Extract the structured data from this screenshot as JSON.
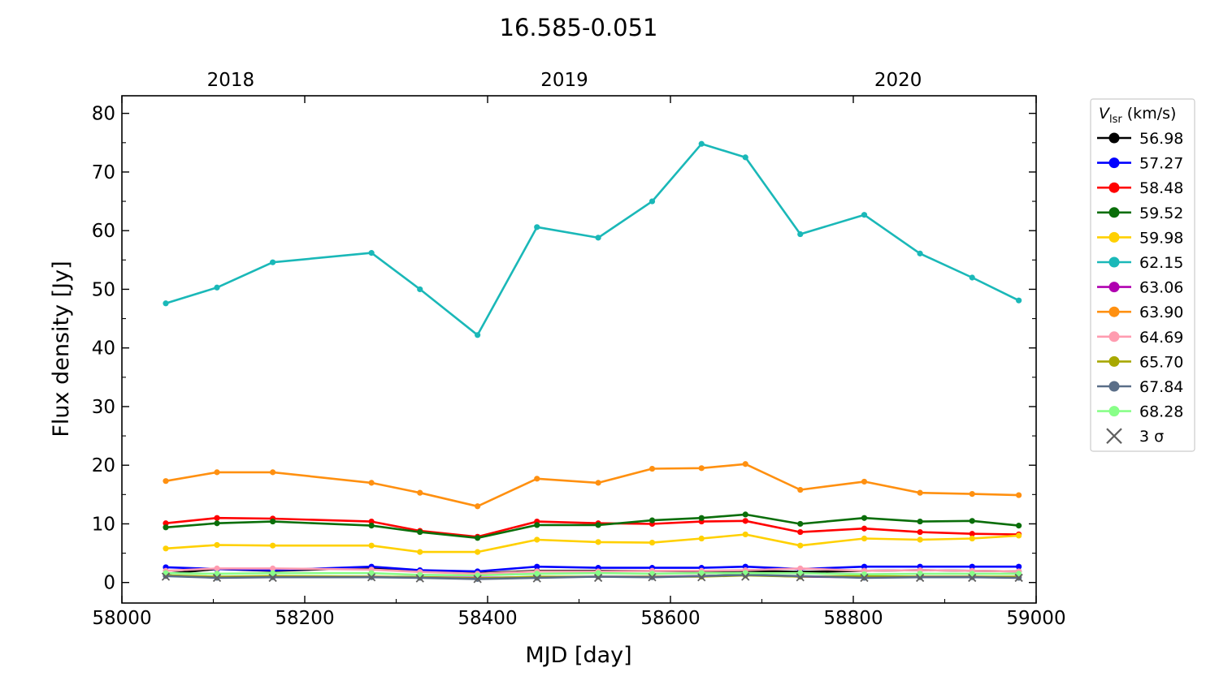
{
  "chart_data": {
    "type": "line",
    "title": "16.585-0.051",
    "xlabel": "MJD [day]",
    "ylabel": "Flux density [Jy]",
    "xlim": [
      58000,
      59000
    ],
    "ylim": [
      -3.5,
      83
    ],
    "grid": false,
    "x_ticks": [
      58000,
      58200,
      58400,
      58600,
      58800,
      59000
    ],
    "x_tick_labels": [
      "58000",
      "58200",
      "58400",
      "58600",
      "58800",
      "59000"
    ],
    "y_ticks": [
      0,
      10,
      20,
      30,
      40,
      50,
      60,
      70,
      80
    ],
    "y_tick_labels": [
      "0",
      "10",
      "20",
      "30",
      "40",
      "50",
      "60",
      "70",
      "80"
    ],
    "top_axis": {
      "labels": [
        "2018",
        "2019",
        "2020"
      ],
      "ticks_mjd": [
        58119,
        58484,
        58849
      ]
    },
    "legend": {
      "title_var": "V",
      "title_sub": "lsr",
      "title_unit": " (km/s)",
      "position": "outside-right"
    },
    "x": [
      58048,
      58104,
      58165,
      58273,
      58326,
      58389,
      58454,
      58521,
      58580,
      58634,
      58682,
      58742,
      58812,
      58873,
      58930,
      58981
    ],
    "series": [
      {
        "name": "56.98",
        "color": "#000000",
        "values": [
          1.5,
          2.3,
          2.0,
          2.5,
          2.0,
          1.6,
          2.0,
          2.0,
          2.0,
          1.9,
          2.0,
          1.8,
          2.0,
          2.1,
          2.0,
          1.9
        ]
      },
      {
        "name": "57.27",
        "color": "#0000ff",
        "values": [
          2.6,
          2.3,
          2.1,
          2.7,
          2.1,
          1.9,
          2.7,
          2.5,
          2.5,
          2.5,
          2.7,
          2.3,
          2.7,
          2.7,
          2.7,
          2.7
        ]
      },
      {
        "name": "58.48",
        "color": "#ff0000",
        "values": [
          10.1,
          11.0,
          10.9,
          10.4,
          8.8,
          7.8,
          10.4,
          10.1,
          10.0,
          10.4,
          10.5,
          8.6,
          9.2,
          8.6,
          8.3,
          8.2
        ]
      },
      {
        "name": "59.52",
        "color": "#0a6e0a",
        "values": [
          9.4,
          10.1,
          10.4,
          9.7,
          8.6,
          7.6,
          9.8,
          9.8,
          10.6,
          11.0,
          11.6,
          10.0,
          11.0,
          10.4,
          10.5,
          9.7
        ]
      },
      {
        "name": "59.98",
        "color": "#ffd000",
        "values": [
          5.8,
          6.4,
          6.3,
          6.3,
          5.2,
          5.2,
          7.3,
          6.9,
          6.8,
          7.5,
          8.2,
          6.3,
          7.5,
          7.3,
          7.5,
          8.0
        ]
      },
      {
        "name": "62.15",
        "color": "#1ab8b8",
        "values": [
          47.6,
          50.3,
          54.6,
          56.2,
          50.0,
          42.2,
          60.6,
          58.8,
          65.0,
          74.8,
          72.5,
          59.4,
          62.7,
          56.1,
          52.0,
          48.1
        ]
      },
      {
        "name": "63.06",
        "color": "#b000b0",
        "values": [
          1.2,
          0.9,
          1.0,
          1.0,
          0.9,
          0.8,
          0.9,
          1.0,
          1.0,
          1.1,
          1.3,
          1.0,
          0.9,
          1.0,
          1.0,
          0.9
        ]
      },
      {
        "name": "63.90",
        "color": "#ff9010",
        "values": [
          17.3,
          18.8,
          18.8,
          17.0,
          15.3,
          13.0,
          17.7,
          17.0,
          19.4,
          19.5,
          20.2,
          15.8,
          17.2,
          15.3,
          15.1,
          14.9
        ]
      },
      {
        "name": "64.69",
        "color": "#ff9cb0",
        "values": [
          2.0,
          2.4,
          2.4,
          2.2,
          1.8,
          1.5,
          1.9,
          1.9,
          2.0,
          2.0,
          2.1,
          2.4,
          2.0,
          2.1,
          2.0,
          1.9
        ]
      },
      {
        "name": "65.70",
        "color": "#a8a800",
        "values": [
          1.2,
          1.0,
          1.1,
          1.0,
          0.9,
          0.7,
          1.0,
          1.0,
          1.0,
          1.0,
          1.2,
          1.0,
          1.1,
          1.0,
          1.0,
          1.0
        ]
      },
      {
        "name": "67.84",
        "color": "#5a6e88",
        "values": [
          1.1,
          0.8,
          0.9,
          0.9,
          0.8,
          0.6,
          0.8,
          1.0,
          0.9,
          1.1,
          1.3,
          1.1,
          0.8,
          0.9,
          0.9,
          0.8
        ]
      },
      {
        "name": "68.28",
        "color": "#88ff88",
        "values": [
          1.6,
          1.5,
          1.6,
          1.6,
          1.3,
          1.2,
          1.5,
          1.6,
          1.5,
          1.6,
          1.6,
          1.6,
          1.4,
          1.5,
          1.5,
          1.5
        ]
      }
    ],
    "sigma_marker": {
      "label": "3 σ",
      "color": "#606060",
      "x": [
        58048,
        58104,
        58165,
        58273,
        58326,
        58389,
        58454,
        58521,
        58580,
        58634,
        58682,
        58742,
        58812,
        58873,
        58930,
        58981
      ],
      "values": [
        1.0,
        0.8,
        0.8,
        0.9,
        0.7,
        0.6,
        0.7,
        0.8,
        0.9,
        0.9,
        1.0,
        0.9,
        0.8,
        0.8,
        0.8,
        0.8
      ]
    }
  }
}
